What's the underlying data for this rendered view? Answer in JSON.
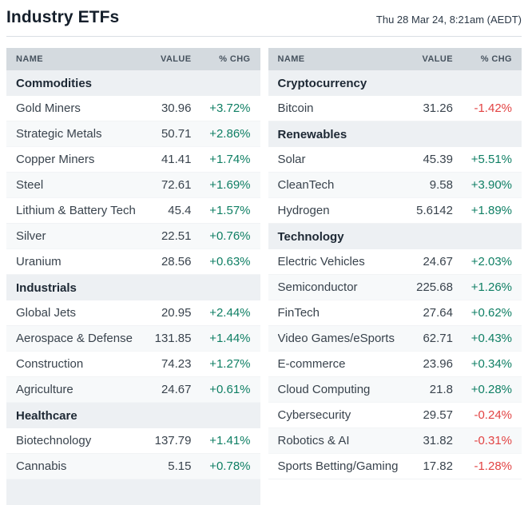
{
  "header": {
    "title": "Industry ETFs",
    "timestamp": "Thu 28 Mar 24, 8:21am (AEDT)"
  },
  "columns": {
    "name": "NAME",
    "value": "VALUE",
    "chg": "% CHG"
  },
  "colors": {
    "positive": "#0f7f64",
    "negative": "#e24343"
  },
  "tables": {
    "left": {
      "sections": [
        {
          "label": "Commodities",
          "rows": [
            {
              "name": "Gold Miners",
              "value": "30.96",
              "chg": "+3.72%"
            },
            {
              "name": "Strategic Metals",
              "value": "50.71",
              "chg": "+2.86%"
            },
            {
              "name": "Copper Miners",
              "value": "41.41",
              "chg": "+1.74%"
            },
            {
              "name": "Steel",
              "value": "72.61",
              "chg": "+1.69%"
            },
            {
              "name": "Lithium & Battery Tech",
              "value": "45.4",
              "chg": "+1.57%"
            },
            {
              "name": "Silver",
              "value": "22.51",
              "chg": "+0.76%"
            },
            {
              "name": "Uranium",
              "value": "28.56",
              "chg": "+0.63%"
            }
          ]
        },
        {
          "label": "Industrials",
          "rows": [
            {
              "name": "Global Jets",
              "value": "20.95",
              "chg": "+2.44%"
            },
            {
              "name": "Aerospace & Defense",
              "value": "131.85",
              "chg": "+1.44%"
            },
            {
              "name": "Construction",
              "value": "74.23",
              "chg": "+1.27%"
            },
            {
              "name": "Agriculture",
              "value": "24.67",
              "chg": "+0.61%"
            }
          ]
        },
        {
          "label": "Healthcare",
          "rows": [
            {
              "name": "Biotechnology",
              "value": "137.79",
              "chg": "+1.41%"
            },
            {
              "name": "Cannabis",
              "value": "5.15",
              "chg": "+0.78%"
            }
          ]
        },
        {
          "label": "",
          "rows": []
        }
      ]
    },
    "right": {
      "sections": [
        {
          "label": "Cryptocurrency",
          "rows": [
            {
              "name": "Bitcoin",
              "value": "31.26",
              "chg": "-1.42%"
            }
          ]
        },
        {
          "label": "Renewables",
          "rows": [
            {
              "name": "Solar",
              "value": "45.39",
              "chg": "+5.51%"
            },
            {
              "name": "CleanTech",
              "value": "9.58",
              "chg": "+3.90%"
            },
            {
              "name": "Hydrogen",
              "value": "5.6142",
              "chg": "+1.89%"
            }
          ]
        },
        {
          "label": "Technology",
          "rows": [
            {
              "name": "Electric Vehicles",
              "value": "24.67",
              "chg": "+2.03%"
            },
            {
              "name": "Semiconductor",
              "value": "225.68",
              "chg": "+1.26%"
            },
            {
              "name": "FinTech",
              "value": "27.64",
              "chg": "+0.62%"
            },
            {
              "name": "Video Games/eSports",
              "value": "62.71",
              "chg": "+0.43%"
            },
            {
              "name": "E-commerce",
              "value": "23.96",
              "chg": "+0.34%"
            },
            {
              "name": "Cloud Computing",
              "value": "21.8",
              "chg": "+0.28%"
            },
            {
              "name": "Cybersecurity",
              "value": "29.57",
              "chg": "-0.24%"
            },
            {
              "name": "Robotics & AI",
              "value": "31.82",
              "chg": "-0.31%"
            },
            {
              "name": "Sports Betting/Gaming",
              "value": "17.82",
              "chg": "-1.28%"
            }
          ]
        }
      ]
    }
  }
}
